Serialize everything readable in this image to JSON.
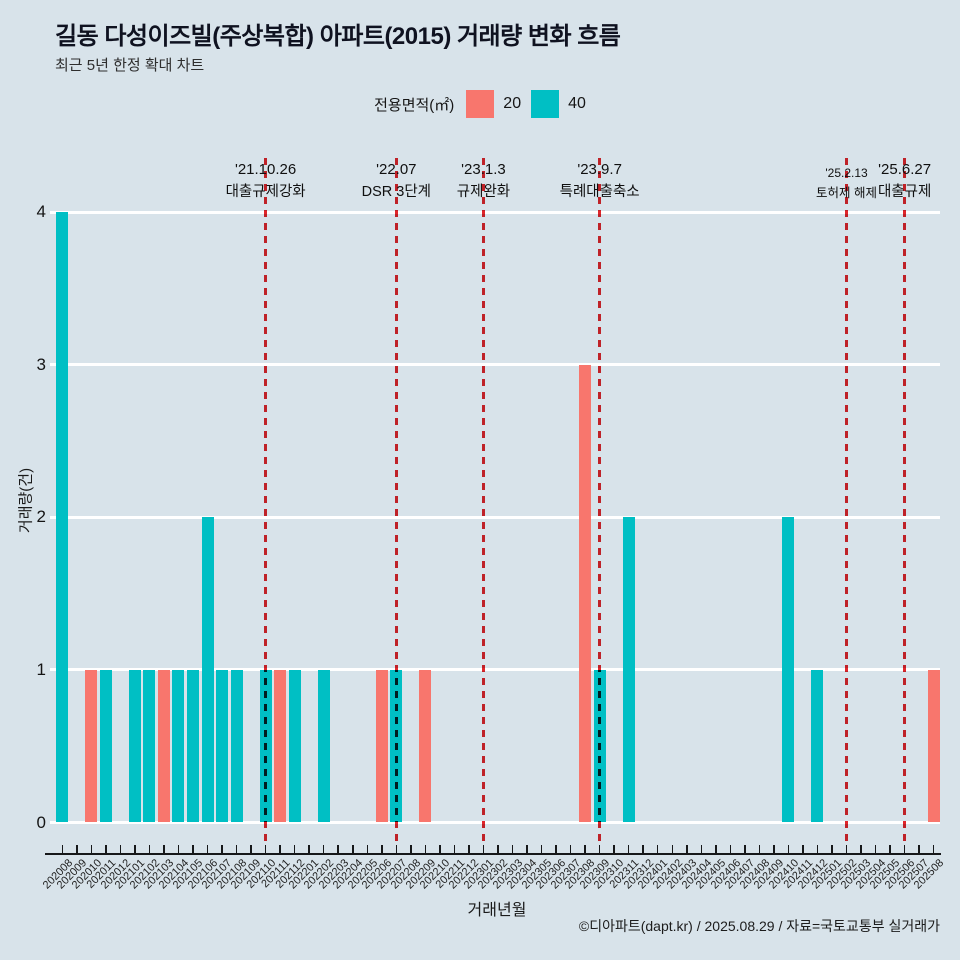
{
  "header": {
    "title": "길동 다성이즈빌(주상복합) 아파트(2015) 거래량 변화 흐름",
    "subtitle": "최근 5년 한정 확대 차트"
  },
  "legend": {
    "label": "전용면적(㎡)",
    "items": [
      {
        "name": "20",
        "color": "#f8766d"
      },
      {
        "name": "40",
        "color": "#00bfc4"
      }
    ]
  },
  "chart_data": {
    "type": "bar",
    "title": "길동 다성이즈빌(주상복합) 아파트(2015) 거래량 변화 흐름",
    "subtitle": "최근 5년 한정 확대 차트",
    "xlabel": "거래년월",
    "ylabel": "거래량(건)",
    "yticks": [
      0,
      1,
      2,
      3,
      4
    ],
    "ylim": [
      0,
      4
    ],
    "grid": true,
    "legend_position": "top-center",
    "x": [
      "202008",
      "202009",
      "202010",
      "202011",
      "202012",
      "202101",
      "202102",
      "202103",
      "202104",
      "202105",
      "202106",
      "202107",
      "202108",
      "202109",
      "202110",
      "202111",
      "202112",
      "202201",
      "202202",
      "202203",
      "202204",
      "202205",
      "202206",
      "202207",
      "202208",
      "202209",
      "202210",
      "202211",
      "202212",
      "202301",
      "202302",
      "202303",
      "202304",
      "202305",
      "202306",
      "202307",
      "202308",
      "202309",
      "202310",
      "202311",
      "202312",
      "202401",
      "202402",
      "202403",
      "202404",
      "202405",
      "202406",
      "202407",
      "202408",
      "202409",
      "202410",
      "202411",
      "202412",
      "202501",
      "202502",
      "202503",
      "202504",
      "202505",
      "202506",
      "202507",
      "202508"
    ],
    "series": [
      {
        "name": "20",
        "color": "#f8766d",
        "values_by_month": {
          "202010": 1,
          "202103": 1,
          "202111": 1,
          "202206": 1,
          "202209": 1,
          "202308": 3,
          "202508": 1
        }
      },
      {
        "name": "40",
        "color": "#00bfc4",
        "values_by_month": {
          "202008": 4,
          "202011": 1,
          "202101": 1,
          "202102": 1,
          "202104": 1,
          "202105": 1,
          "202106": 2,
          "202107": 1,
          "202108": 1,
          "202110": 1,
          "202112": 1,
          "202202": 1,
          "202207": 1,
          "202309": 1,
          "202311": 2,
          "202410": 2,
          "202412": 1
        }
      }
    ],
    "annotation_line_color": "#e2262b",
    "annotations": [
      {
        "month": "202110",
        "date": "'21.10.26",
        "label": "대출규제강화",
        "small": false
      },
      {
        "month": "202207",
        "date": "'22.07",
        "label": "DSR 3단계",
        "small": false
      },
      {
        "month": "202301",
        "date": "'23.1.3",
        "label": "규제완화",
        "small": false
      },
      {
        "month": "202309",
        "date": "'23.9.7",
        "label": "특례대출축소",
        "small": false
      },
      {
        "month": "202502",
        "date": "'25.2.13",
        "label": "토허제 해제",
        "small": true
      },
      {
        "month": "202506",
        "date": "'25.6.27",
        "label": "대출규제",
        "small": false
      }
    ]
  },
  "footer": {
    "credit": "©디아파트(dapt.kr) / 2025.08.29 / 자료=국토교통부 실거래가"
  }
}
